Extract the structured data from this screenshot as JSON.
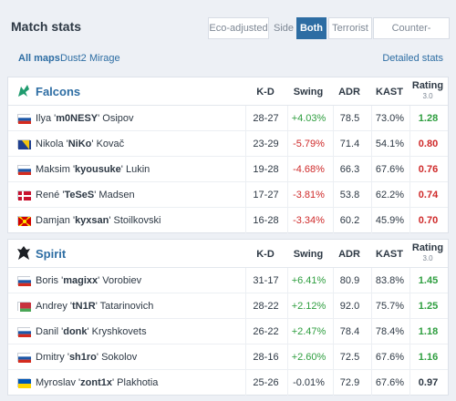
{
  "header": {
    "title": "Match stats",
    "eco_adjusted": "Eco-adjusted",
    "side_label": "Side",
    "both": "Both",
    "terrorist": "Terrorist",
    "counter_terrorist": "Counter-Terrorist"
  },
  "maps": {
    "all": "All maps",
    "dust2": "Dust2",
    "mirage": "Mirage",
    "detailed": "Detailed stats"
  },
  "columns": {
    "kd": "K-D",
    "swing": "Swing",
    "adr": "ADR",
    "kast": "KAST",
    "rating": "Rating",
    "rating_version": "3.0"
  },
  "teams": [
    {
      "name": "Falcons",
      "players": [
        {
          "first": "Ilya '",
          "nick": "m0NESY",
          "last": "' Osipov",
          "flag": "russia",
          "kd": "28-27",
          "swing": "+4.03%",
          "adr": "78.5",
          "kast": "73.0%",
          "rating": "1.28"
        },
        {
          "first": "Nikola '",
          "nick": "NiKo",
          "last": "' Kovač",
          "flag": "bosnia",
          "kd": "23-29",
          "swing": "-5.79%",
          "adr": "71.4",
          "kast": "54.1%",
          "rating": "0.80"
        },
        {
          "first": "Maksim '",
          "nick": "kyousuke",
          "last": "' Lukin",
          "flag": "russia",
          "kd": "19-28",
          "swing": "-4.68%",
          "adr": "66.3",
          "kast": "67.6%",
          "rating": "0.76"
        },
        {
          "first": "René '",
          "nick": "TeSeS",
          "last": "' Madsen",
          "flag": "denmark",
          "kd": "17-27",
          "swing": "-3.81%",
          "adr": "53.8",
          "kast": "62.2%",
          "rating": "0.74"
        },
        {
          "first": "Damjan '",
          "nick": "kyxsan",
          "last": "' Stoilkovski",
          "flag": "macedonia",
          "kd": "16-28",
          "swing": "-3.34%",
          "adr": "60.2",
          "kast": "45.9%",
          "rating": "0.70"
        }
      ]
    },
    {
      "name": "Spirit",
      "players": [
        {
          "first": "Boris '",
          "nick": "magixx",
          "last": "' Vorobiev",
          "flag": "russia",
          "kd": "31-17",
          "swing": "+6.41%",
          "adr": "80.9",
          "kast": "83.8%",
          "rating": "1.45"
        },
        {
          "first": "Andrey '",
          "nick": "tN1R",
          "last": "' Tatarinovich",
          "flag": "belarus",
          "kd": "28-22",
          "swing": "+2.12%",
          "adr": "92.0",
          "kast": "75.7%",
          "rating": "1.25"
        },
        {
          "first": "Danil '",
          "nick": "donk",
          "last": "' Kryshkovets",
          "flag": "russia",
          "kd": "26-22",
          "swing": "+2.47%",
          "adr": "78.4",
          "kast": "78.4%",
          "rating": "1.18"
        },
        {
          "first": "Dmitry '",
          "nick": "sh1ro",
          "last": "' Sokolov",
          "flag": "russia",
          "kd": "28-16",
          "swing": "+2.60%",
          "adr": "72.5",
          "kast": "67.6%",
          "rating": "1.16"
        },
        {
          "first": "Myroslav '",
          "nick": "zont1x",
          "last": "' Plakhotia",
          "flag": "ukraine",
          "kd": "25-26",
          "swing": "-0.01%",
          "adr": "72.9",
          "kast": "67.6%",
          "rating": "0.97"
        }
      ]
    }
  ],
  "colors": {
    "accent": "#2d6da3",
    "positive": "#2e9e3f",
    "negative": "#cf2a2a"
  }
}
